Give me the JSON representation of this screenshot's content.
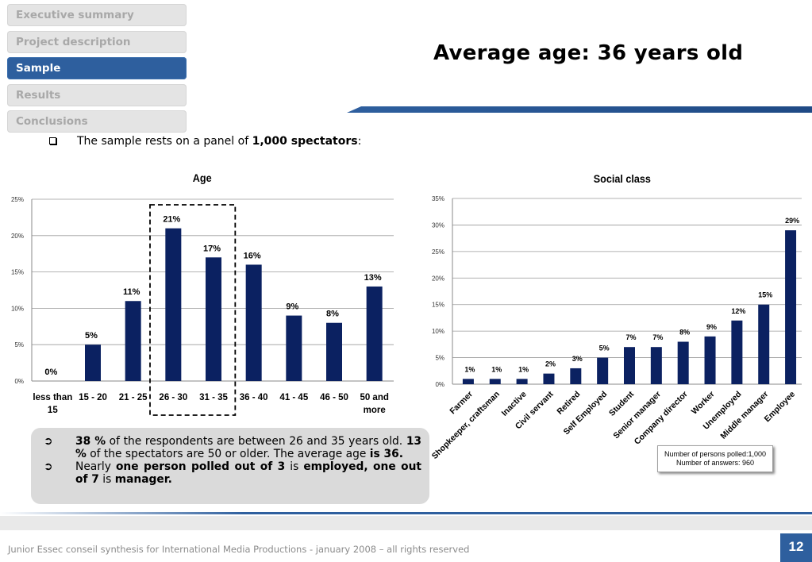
{
  "nav": {
    "items": [
      {
        "label": "Executive summary",
        "active": false
      },
      {
        "label": "Project description",
        "active": false
      },
      {
        "label": "Sample",
        "active": true
      },
      {
        "label": "Results",
        "active": false
      },
      {
        "label": "Conclusions",
        "active": false
      }
    ]
  },
  "page_title": "Average age: 36 years old",
  "intro": {
    "pre": "The sample rests on a panel of ",
    "bold": "1,000 spectators",
    "post": ":"
  },
  "chart_data": [
    {
      "type": "bar",
      "title": "Age",
      "categories": [
        "less than 15",
        "15 - 20",
        "21 - 25",
        "26 - 30",
        "31 - 35",
        "36 - 40",
        "41 - 45",
        "46 - 50",
        "50 and more"
      ],
      "values": [
        0,
        5,
        11,
        21,
        17,
        16,
        9,
        8,
        13
      ],
      "data_labels": [
        "0%",
        "5%",
        "11%",
        "21%",
        "17%",
        "16%",
        "9%",
        "8%",
        "13%"
      ],
      "y_ticks": [
        "0%",
        "5%",
        "10%",
        "15%",
        "20%",
        "25%"
      ],
      "ylim": [
        0,
        25
      ],
      "grid": true,
      "highlighted_categories": [
        "26 - 30",
        "31 - 35"
      ],
      "bar_color": "#0b2161"
    },
    {
      "type": "bar",
      "title": "Social class",
      "categories": [
        "Farmer",
        "Shopkeeper, craftsman",
        "Inactive",
        "Civil servant",
        "Retired",
        "Self Employed",
        "Student",
        "Senior manager",
        "Company director",
        "Worker",
        "Unemployed",
        "Middle manager",
        "Employee"
      ],
      "values": [
        1,
        1,
        1,
        2,
        3,
        5,
        7,
        7,
        8,
        9,
        12,
        15,
        29
      ],
      "data_labels": [
        "1%",
        "1%",
        "1%",
        "2%",
        "3%",
        "5%",
        "7%",
        "7%",
        "8%",
        "9%",
        "12%",
        "15%",
        "29%"
      ],
      "y_ticks": [
        "0%",
        "5%",
        "10%",
        "15%",
        "20%",
        "25%",
        "30%",
        "35%"
      ],
      "ylim": [
        0,
        35
      ],
      "grid": true,
      "bar_color": "#0b2161"
    }
  ],
  "summary": {
    "point1": {
      "b1": "38 %",
      "t1": " of the respondents are between 26 and 35 years old. ",
      "b2": "13 %",
      "t2": " of the spectators are 50 or older. The average age ",
      "b3": "is 36."
    },
    "point2": {
      "t1": "Nearly ",
      "b1": "one person polled out of 3",
      "t2": " is ",
      "b2": "employed, one out of 7",
      "t3": " is  ",
      "b3": "manager."
    }
  },
  "note": {
    "line1": "Number of persons polled:1,000",
    "line2": "Number of answers: 960"
  },
  "footer": {
    "text": "Junior Essec conseil synthesis for International Media Productions - january 2008 – all rights reserved",
    "page_number": "12"
  },
  "colors": {
    "accent": "#2e5f9e",
    "bar": "#0b2161",
    "nav_inactive": "#e4e4e4"
  }
}
